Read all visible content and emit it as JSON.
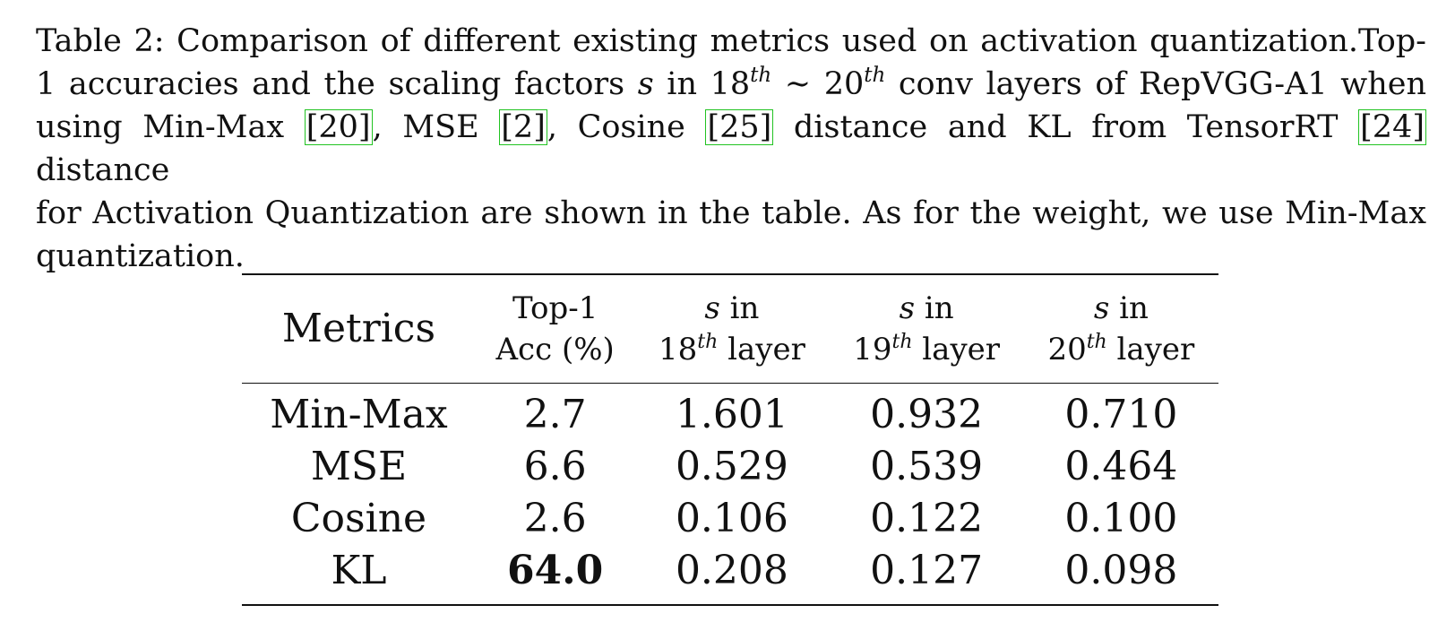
{
  "caption": {
    "line1": "Table 2: Comparison of different existing metrics used on activation quantization.Top-",
    "line2_a": "1 accuracies and the scaling factors ",
    "line2_s": "s",
    "line2_b": " in 18",
    "line2_sup1": "th",
    "line2_c": " ∼ 20",
    "line2_sup2": "th",
    "line2_d": " conv layers of RepVGG-A1 when",
    "line3_a": "using Min-Max ",
    "cite_minmax": "[20]",
    "line3_b": ", MSE ",
    "cite_mse": "[2]",
    "line3_c": ", Cosine ",
    "cite_cosine": "[25]",
    "line3_d": " distance and KL from TensorRT ",
    "cite_tensorrt": "[24]",
    "line3_e": " distance",
    "line4": "for Activation Quantization are shown in the table. As for the weight, we use Min-Max",
    "line5": "quantization."
  },
  "table": {
    "headers": {
      "metrics": "Metrics",
      "top1_line1": "Top-1",
      "top1_line2": "Acc (%)",
      "s_label": "s",
      "in": " in",
      "l18_num": "18",
      "l19_num": "19",
      "l20_num": "20",
      "th": "th",
      "layer": " layer"
    },
    "rows": [
      {
        "metric": "Min-Max",
        "top1": "2.7",
        "s18": "1.601",
        "s19": "0.932",
        "s20": "0.710"
      },
      {
        "metric": "MSE",
        "top1": "6.6",
        "s18": "0.529",
        "s19": "0.539",
        "s20": "0.464"
      },
      {
        "metric": "Cosine",
        "top1": "2.6",
        "s18": "0.106",
        "s19": "0.122",
        "s20": "0.100"
      },
      {
        "metric": "KL",
        "top1": "64.0",
        "s18": "0.208",
        "s19": "0.127",
        "s20": "0.098"
      }
    ]
  },
  "colors": {
    "text": "#111111",
    "citation_box": "#22c322"
  }
}
